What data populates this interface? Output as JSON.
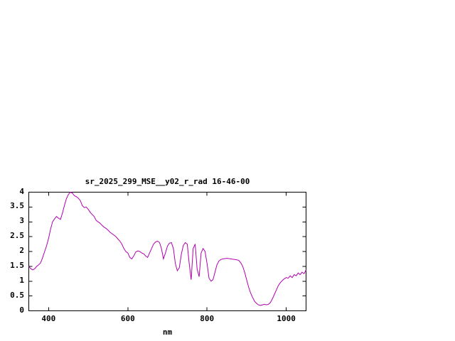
{
  "window": {
    "background": "#ffffff",
    "axis_color": "#000000",
    "text_color": "#000000"
  },
  "chart_data": {
    "type": "line",
    "title": "sr_2025_299_MSE__y02_r_rad 16-46-00",
    "xlabel": "nm",
    "ylabel": "",
    "xlim": [
      350,
      1050
    ],
    "ylim": [
      0,
      4
    ],
    "x_ticks": [
      400,
      600,
      800,
      1000
    ],
    "y_ticks": [
      0,
      0.5,
      1,
      1.5,
      2,
      2.5,
      3,
      3.5,
      4
    ],
    "grid": false,
    "legend": "none",
    "series": [
      {
        "name": "sr_2025_299_MSE__y02_r_rad",
        "color": "#b000b0",
        "x": [
          350,
          355,
          360,
          365,
          370,
          375,
          380,
          385,
          390,
          395,
          400,
          405,
          410,
          415,
          420,
          425,
          430,
          435,
          440,
          445,
          450,
          455,
          460,
          465,
          470,
          475,
          480,
          485,
          490,
          495,
          500,
          505,
          510,
          515,
          520,
          525,
          530,
          535,
          540,
          545,
          550,
          555,
          560,
          565,
          570,
          575,
          580,
          585,
          590,
          595,
          600,
          605,
          610,
          615,
          620,
          625,
          630,
          635,
          640,
          645,
          650,
          655,
          660,
          665,
          670,
          675,
          680,
          685,
          690,
          695,
          700,
          705,
          710,
          715,
          720,
          725,
          730,
          735,
          740,
          745,
          750,
          755,
          760,
          765,
          770,
          775,
          780,
          785,
          790,
          795,
          800,
          805,
          810,
          815,
          820,
          825,
          830,
          835,
          840,
          845,
          850,
          855,
          860,
          865,
          870,
          875,
          880,
          885,
          890,
          895,
          900,
          905,
          910,
          915,
          920,
          925,
          930,
          935,
          940,
          945,
          950,
          955,
          960,
          965,
          970,
          975,
          980,
          985,
          990,
          995,
          1000,
          1005,
          1010,
          1015,
          1020,
          1025,
          1030,
          1035,
          1040,
          1045,
          1050
        ],
        "y": [
          1.5,
          1.42,
          1.38,
          1.42,
          1.5,
          1.55,
          1.62,
          1.8,
          2.0,
          2.2,
          2.45,
          2.75,
          3.0,
          3.1,
          3.18,
          3.12,
          3.08,
          3.3,
          3.55,
          3.78,
          3.92,
          4.0,
          3.97,
          3.88,
          3.85,
          3.8,
          3.72,
          3.55,
          3.48,
          3.5,
          3.42,
          3.32,
          3.25,
          3.18,
          3.05,
          3.0,
          2.95,
          2.88,
          2.82,
          2.78,
          2.72,
          2.65,
          2.6,
          2.55,
          2.5,
          2.42,
          2.35,
          2.25,
          2.1,
          2.0,
          1.95,
          1.8,
          1.75,
          1.85,
          1.98,
          2.02,
          2.0,
          1.95,
          1.92,
          1.85,
          1.8,
          1.95,
          2.1,
          2.25,
          2.32,
          2.35,
          2.3,
          2.1,
          1.75,
          1.95,
          2.18,
          2.28,
          2.3,
          2.1,
          1.6,
          1.35,
          1.45,
          1.9,
          2.2,
          2.3,
          2.25,
          1.6,
          1.05,
          2.1,
          2.25,
          1.4,
          1.15,
          1.95,
          2.1,
          2.0,
          1.6,
          1.1,
          1.0,
          1.05,
          1.3,
          1.55,
          1.68,
          1.73,
          1.75,
          1.76,
          1.77,
          1.76,
          1.75,
          1.74,
          1.73,
          1.72,
          1.7,
          1.62,
          1.5,
          1.3,
          1.05,
          0.8,
          0.6,
          0.45,
          0.32,
          0.25,
          0.2,
          0.18,
          0.2,
          0.22,
          0.2,
          0.22,
          0.28,
          0.4,
          0.55,
          0.7,
          0.85,
          0.95,
          1.02,
          1.08,
          1.12,
          1.1,
          1.18,
          1.12,
          1.22,
          1.18,
          1.28,
          1.22,
          1.3,
          1.25,
          1.38
        ]
      }
    ]
  }
}
